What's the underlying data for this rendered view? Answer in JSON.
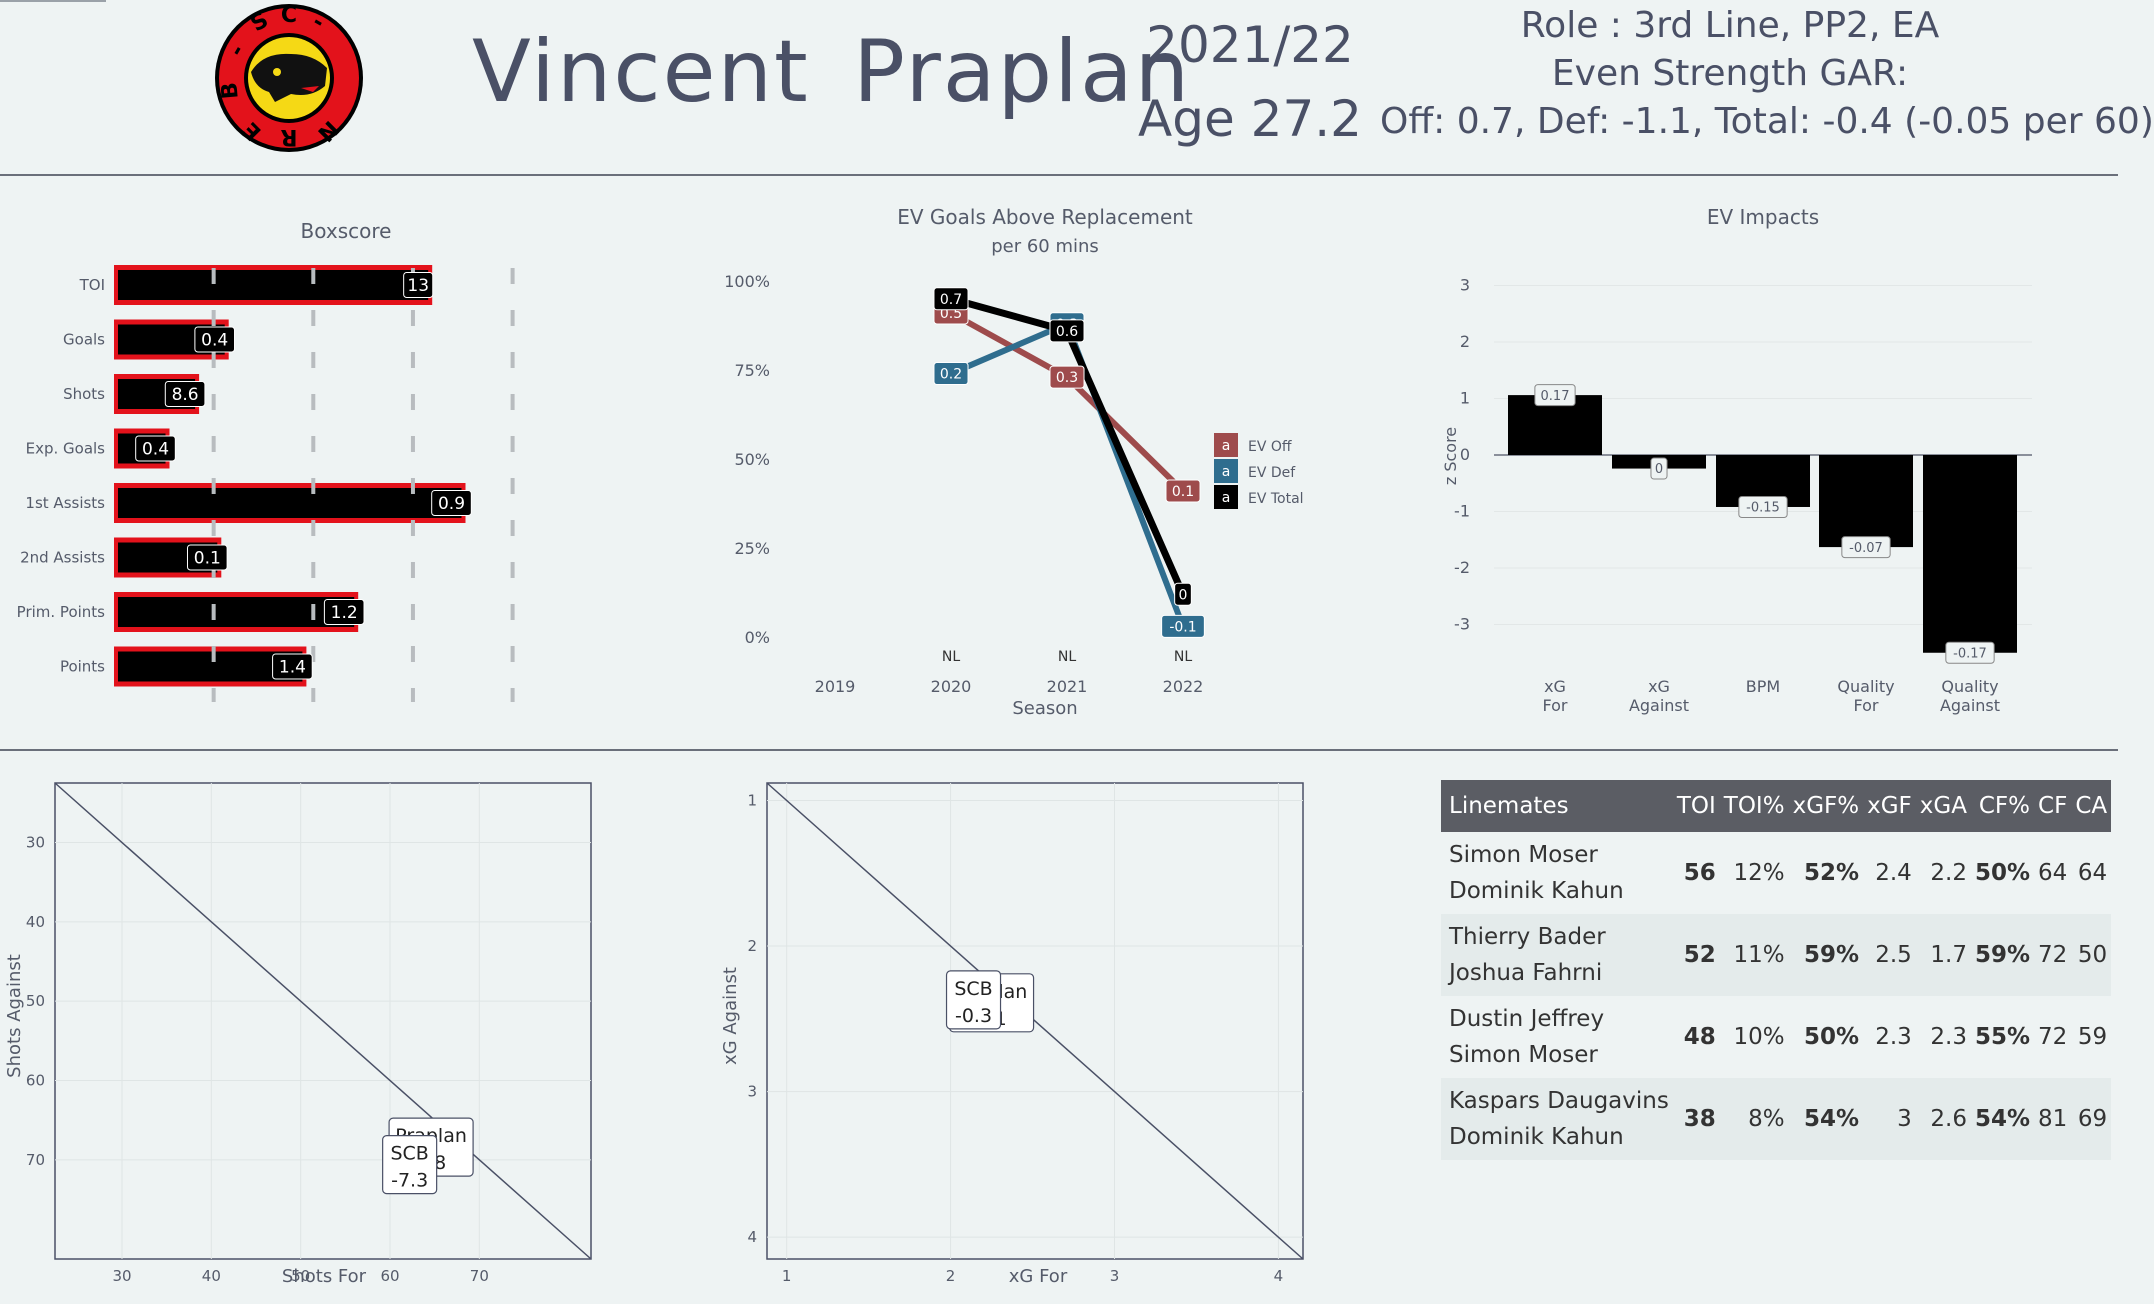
{
  "header": {
    "team_logo": "SC Bern logo (bear)",
    "logo_text": "SCB",
    "player_name": "Vincent  Praplan",
    "season": "2021/22",
    "age": "Age 27.2",
    "role": "Role : 3rd  Line,  PP2,  EA",
    "gar_title": "Even Strength GAR:",
    "gar_values": "Off: 0.7,  Def: -1.1,  Total: -0.4 (-0.05 per 60)"
  },
  "colors": {
    "accent_red": "#e3121b",
    "bar_black": "#000000",
    "off": "#9e4b4c",
    "def": "#2f6d8e",
    "total": "#000000",
    "background": "#eef3f3"
  },
  "chart_data": [
    {
      "type": "bar",
      "title": "Boxscore",
      "orientation": "horizontal",
      "categories": [
        "TOI",
        "Goals",
        "Shots",
        "Exp. Goals",
        "1st Assists",
        "2nd Assists",
        "Prim. Points",
        "Points"
      ],
      "labels": [
        "13",
        "0.4",
        "8.6",
        "0.4",
        "0.9",
        "0.1",
        "1.2",
        "1.4"
      ],
      "percentiles": [
        0.86,
        0.31,
        0.23,
        0.15,
        0.95,
        0.29,
        0.66,
        0.52
      ],
      "grid": "dashed quartile lines"
    },
    {
      "type": "line",
      "title": "EV Goals Above Replacement",
      "subtitle": "per 60 mins",
      "xlabel": "Season",
      "x": [
        "2019",
        "2020",
        "2021",
        "2022"
      ],
      "league_labels": [
        "",
        "NL",
        "NL",
        "NL"
      ],
      "ylabel": "",
      "yticks": [
        "0%",
        "25%",
        "50%",
        "75%",
        "100%"
      ],
      "ylim": [
        0,
        100
      ],
      "series": [
        {
          "name": "EV Off",
          "x": [
            "2020",
            "2021",
            "2022"
          ],
          "y": [
            91,
            73,
            41
          ],
          "labels": [
            "0.5",
            "0.3",
            "0.1"
          ]
        },
        {
          "name": "EV Def",
          "x": [
            "2020",
            "2021",
            "2022"
          ],
          "y": [
            74,
            88,
            3
          ],
          "labels": [
            "0.2",
            "0.3",
            "-0.1"
          ]
        },
        {
          "name": "EV Total",
          "x": [
            "2020",
            "2021",
            "2022"
          ],
          "y": [
            95,
            86,
            12
          ],
          "labels": [
            "0.7",
            "0.6",
            "0"
          ]
        }
      ],
      "legend_marker": "a",
      "legend_position": "right"
    },
    {
      "type": "bar",
      "title": "EV Impacts",
      "ylabel": "z Score",
      "categories": [
        [
          "xG",
          "For"
        ],
        [
          "xG",
          "Against"
        ],
        [
          "BPM"
        ],
        [
          "Quality",
          "For"
        ],
        [
          "Quality",
          "Against"
        ]
      ],
      "values": [
        1.06,
        -0.24,
        -0.92,
        -1.63,
        -3.5
      ],
      "labels": [
        "0.17",
        "0",
        "-0.15",
        "-0.07",
        "-0.17"
      ],
      "ylim": [
        -3.5,
        3
      ],
      "yticks": [
        "3",
        "2",
        "1",
        "0",
        "-1",
        "-2",
        "-3"
      ]
    },
    {
      "type": "scatter",
      "xlabel": "Shots For",
      "ylabel": "Shots Against",
      "xticks": [
        "30",
        "40",
        "50",
        "60",
        "70"
      ],
      "yticks": [
        "30",
        "40",
        "50",
        "60",
        "70"
      ],
      "xlim": [
        22.5,
        82.5
      ],
      "ylim": [
        22.5,
        82.5
      ],
      "y_reversed": true,
      "points": [
        {
          "name": "Praplan",
          "x": 64.6,
          "y": 68.4,
          "label": "1.8"
        },
        {
          "name": "SCB",
          "x": 62.2,
          "y": 70.6,
          "label": "-7.3"
        }
      ]
    },
    {
      "type": "scatter",
      "xlabel": "xG  For",
      "ylabel": "xG Against",
      "xticks": [
        "1",
        "2",
        "3",
        "4"
      ],
      "yticks": [
        "1",
        "2",
        "3",
        "4"
      ],
      "xlim": [
        0.88,
        4.15
      ],
      "ylim": [
        0.88,
        4.15
      ],
      "y_reversed": true,
      "points": [
        {
          "name": "Praplan",
          "x": 2.25,
          "y": 2.39,
          "label": "0.1"
        },
        {
          "name": "SCB",
          "x": 2.14,
          "y": 2.37,
          "label": "-0.3"
        }
      ]
    }
  ],
  "linemates": {
    "headers": [
      "Linemates",
      "TOI",
      "TOI%",
      "xGF%",
      "xGF",
      "xGA",
      "CF%",
      "CF",
      "CA"
    ],
    "rows": [
      {
        "name1": "Simon  Moser",
        "name2": "Dominik  Kahun",
        "toi": "56",
        "toi_pct": "12%",
        "xgf_pct": "52%",
        "xgf": "2.4",
        "xga": "2.2",
        "cf_pct": "50%",
        "cf": "64",
        "ca": "64"
      },
      {
        "name1": "Thierry  Bader",
        "name2": "Joshua  Fahrni",
        "toi": "52",
        "toi_pct": "11%",
        "xgf_pct": "59%",
        "xgf": "2.5",
        "xga": "1.7",
        "cf_pct": "59%",
        "cf": "72",
        "ca": "50"
      },
      {
        "name1": "Dustin  Jeffrey",
        "name2": "Simon  Moser",
        "toi": "48",
        "toi_pct": "10%",
        "xgf_pct": "50%",
        "xgf": "2.3",
        "xga": "2.3",
        "cf_pct": "55%",
        "cf": "72",
        "ca": "59"
      },
      {
        "name1": "Kaspars  Daugavins",
        "name2": "Dominik  Kahun",
        "toi": "38",
        "toi_pct": "8%",
        "xgf_pct": "54%",
        "xgf": "3",
        "xga": "2.6",
        "cf_pct": "54%",
        "cf": "81",
        "ca": "69"
      }
    ]
  }
}
